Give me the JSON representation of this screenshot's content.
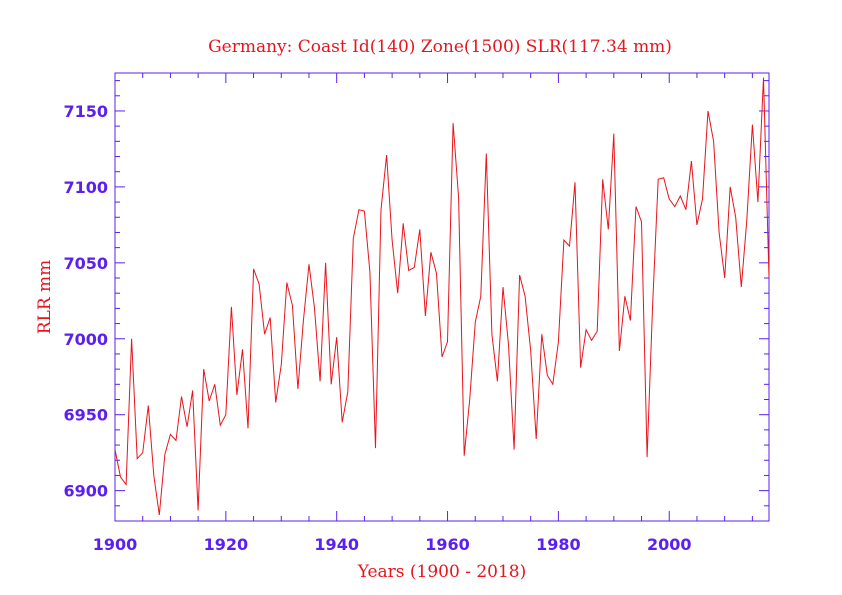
{
  "chart_data": {
    "type": "line",
    "title": "Germany: Coast Id(140) Zone(1500) SLR(117.34 mm)",
    "xlabel": "Years (1900 - 2018)",
    "ylabel": "RLR mm",
    "xlim": [
      1900,
      2018
    ],
    "ylim": [
      6880,
      7175
    ],
    "xticks": [
      1900,
      1920,
      1940,
      1960,
      1980,
      2000
    ],
    "yticks": [
      6900,
      6950,
      7000,
      7050,
      7100,
      7150
    ],
    "grid": false,
    "colors": {
      "axis": "#5b1ff0",
      "series": "#e8141c",
      "text": "#e8141c"
    },
    "series": [
      {
        "x": [
          1900,
          1901,
          1902,
          1903,
          1904,
          1905,
          1906,
          1907,
          1908,
          1909,
          1910,
          1911,
          1912,
          1913,
          1914,
          1915,
          1916,
          1917,
          1918,
          1919,
          1920,
          1921,
          1922,
          1923,
          1924,
          1925,
          1926,
          1927,
          1928,
          1929,
          1930,
          1931,
          1932,
          1933,
          1934,
          1935,
          1936,
          1937,
          1938,
          1939,
          1940,
          1941,
          1942,
          1943,
          1944,
          1945,
          1946,
          1947,
          1948,
          1949,
          1950,
          1951,
          1952,
          1953,
          1954,
          1955,
          1956,
          1957,
          1958,
          1959,
          1960,
          1961,
          1962,
          1963,
          1964,
          1965,
          1966,
          1967,
          1968,
          1969,
          1970,
          1971,
          1972,
          1973,
          1974,
          1975,
          1976,
          1977,
          1978,
          1979,
          1980,
          1981,
          1982,
          1983,
          1984,
          1985,
          1986,
          1987,
          1988,
          1989,
          1990,
          1991,
          1992,
          1993,
          1994,
          1995,
          1996,
          1997,
          1998,
          1999,
          2000,
          2001,
          2002,
          2003,
          2004,
          2005,
          2006,
          2007,
          2008,
          2009,
          2010,
          2011,
          2012,
          2013,
          2014,
          2015,
          2016,
          2017,
          2018
        ],
        "values": [
          6927,
          6909,
          6904,
          7000,
          6921,
          6925,
          6956,
          6910,
          6884,
          6924,
          6937,
          6933,
          6962,
          6942,
          6966,
          6887,
          6980,
          6959,
          6970,
          6943,
          6950,
          7021,
          6963,
          6993,
          6941,
          7046,
          7036,
          7003,
          7014,
          6958,
          6983,
          7037,
          7022,
          6967,
          7012,
          7049,
          7020,
          6972,
          7050,
          6970,
          7001,
          6945,
          6965,
          7066,
          7085,
          7084,
          7044,
          6928,
          7085,
          7121,
          7065,
          7030,
          7076,
          7045,
          7047,
          7072,
          7015,
          7057,
          7043,
          6988,
          6998,
          7142,
          7093,
          6923,
          6960,
          7011,
          7028,
          7122,
          7003,
          6972,
          7034,
          6996,
          6927,
          7042,
          7028,
          6992,
          6934,
          7003,
          6976,
          6970,
          6998,
          7065,
          7061,
          7103,
          6981,
          7006,
          6999,
          7005,
          7105,
          7072,
          7135,
          6992,
          7028,
          7012,
          7087,
          7077,
          6922,
          7022,
          7105,
          7106,
          7092,
          7087,
          7094,
          7085,
          7117,
          7075,
          7092,
          7150,
          7130,
          7070,
          7040,
          7100,
          7080,
          7034,
          7078,
          7141,
          7090,
          7172,
          7040
        ]
      }
    ]
  }
}
